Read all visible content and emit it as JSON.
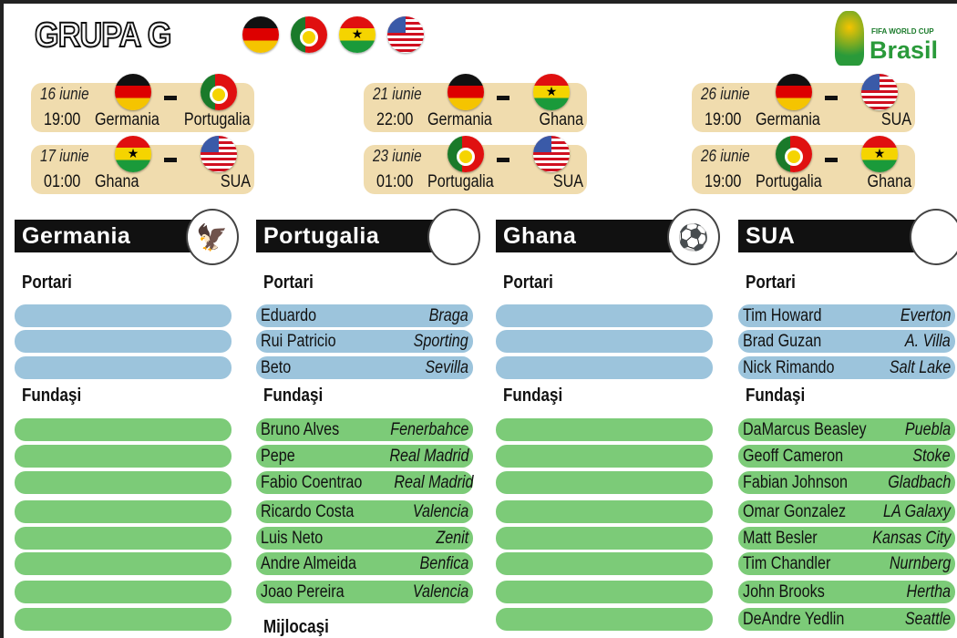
{
  "title": "GRUPA G",
  "logo": {
    "line1": "FIFA WORLD CUP",
    "line2": "Brasil"
  },
  "header_flags": [
    "ger",
    "por",
    "gha",
    "usa"
  ],
  "matches": [
    {
      "date": "16 iunie",
      "time": "19:00",
      "team1": "Germania",
      "team2": "Portugalia",
      "f1": "ger",
      "f2": "por"
    },
    {
      "date": "17 iunie",
      "time": "01:00",
      "team1": "Ghana",
      "team2": "SUA",
      "f1": "gha",
      "f2": "usa"
    },
    {
      "date": "21 iunie",
      "time": "22:00",
      "team1": "Germania",
      "team2": "Ghana",
      "f1": "ger",
      "f2": "gha"
    },
    {
      "date": "23 iunie",
      "time": "01:00",
      "team1": "Portugalia",
      "team2": "SUA",
      "f1": "por",
      "f2": "usa"
    },
    {
      "date": "26 iunie",
      "time": "19:00",
      "team1": "Germania",
      "team2": "SUA",
      "f1": "ger",
      "f2": "usa"
    },
    {
      "date": "26 iunie",
      "time": "19:00",
      "team1": "Portugalia",
      "team2": "Ghana",
      "f1": "por",
      "f2": "gha"
    }
  ],
  "labels": {
    "portari": "Portari",
    "fundasi": "Fundaşi",
    "mijlocasi": "Mijlocaşi"
  },
  "teams": [
    {
      "name": "Germania",
      "crest": "eagle-crest-icon",
      "glyph": "🦅",
      "goalkeepers": [
        [
          "",
          ""
        ],
        [
          "",
          ""
        ],
        [
          "",
          ""
        ]
      ],
      "defenders": [
        [
          "",
          ""
        ],
        [
          "",
          ""
        ],
        [
          "",
          ""
        ],
        [
          "",
          ""
        ],
        [
          "",
          ""
        ],
        [
          "",
          ""
        ],
        [
          "",
          ""
        ],
        [
          "",
          ""
        ]
      ],
      "show_mid": false
    },
    {
      "name": "Portugalia",
      "crest": "portugal-crest-icon",
      "glyph": "✠",
      "goalkeepers": [
        [
          "Eduardo",
          "Braga"
        ],
        [
          "Rui Patricio",
          "Sporting"
        ],
        [
          "Beto",
          "Sevilla"
        ]
      ],
      "defenders": [
        [
          "Bruno Alves",
          "Fenerbahce"
        ],
        [
          "Pepe",
          "Real Madrid"
        ],
        [
          "Fabio Coentrao",
          "Real Madrid"
        ],
        [
          "Ricardo Costa",
          "Valencia"
        ],
        [
          "Luis Neto",
          "Zenit"
        ],
        [
          "Andre Almeida",
          "Benfica"
        ],
        [
          "Joao Pereira",
          "Valencia"
        ]
      ],
      "show_mid": true
    },
    {
      "name": "Ghana",
      "crest": "ghana-crest-icon",
      "glyph": "⚽",
      "goalkeepers": [
        [
          "",
          ""
        ],
        [
          "",
          ""
        ],
        [
          "",
          ""
        ]
      ],
      "defenders": [
        [
          "",
          ""
        ],
        [
          "",
          ""
        ],
        [
          "",
          ""
        ],
        [
          "",
          ""
        ],
        [
          "",
          ""
        ],
        [
          "",
          ""
        ],
        [
          "",
          ""
        ],
        [
          "",
          ""
        ]
      ],
      "show_mid": false
    },
    {
      "name": "SUA",
      "crest": "us-soccer-crest-icon",
      "glyph": "🛡",
      "goalkeepers": [
        [
          "Tim Howard",
          "Everton"
        ],
        [
          "Brad Guzan",
          "A. Villa"
        ],
        [
          "Nick Rimando",
          "Salt Lake"
        ]
      ],
      "defenders": [
        [
          "DaMarcus Beasley",
          "Puebla"
        ],
        [
          "Geoff Cameron",
          "Stoke"
        ],
        [
          "Fabian Johnson",
          "Gladbach"
        ],
        [
          "Omar Gonzalez",
          "LA Galaxy"
        ],
        [
          "Matt Besler",
          "Kansas City"
        ],
        [
          "Tim Chandler",
          "Nurnberg"
        ],
        [
          "John Brooks",
          "Hertha"
        ],
        [
          "DeAndre Yedlin",
          "Seattle"
        ]
      ],
      "show_mid": false
    }
  ]
}
